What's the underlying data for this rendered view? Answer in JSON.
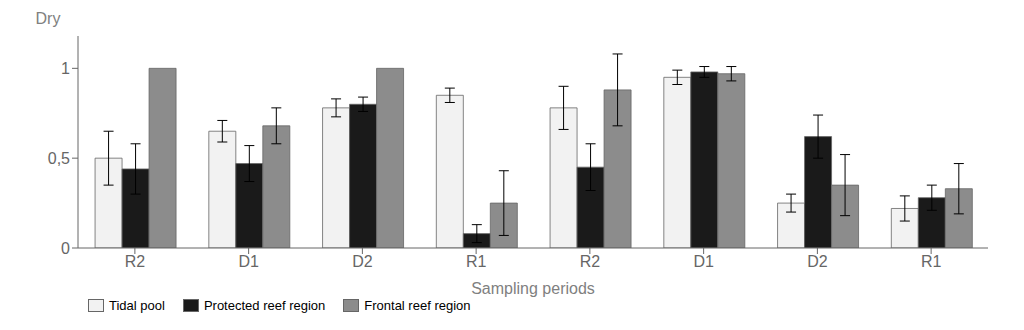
{
  "chart_data": {
    "type": "bar",
    "xlabel": "Sampling periods",
    "ylabel": "Dry",
    "categories": [
      "R2",
      "D1",
      "D2",
      "R1",
      "R2",
      "D1",
      "D2",
      "R1"
    ],
    "series": [
      {
        "name": "Tidal pool",
        "color": "#f2f2f2",
        "values": [
          0.5,
          0.65,
          0.78,
          0.85,
          0.78,
          0.95,
          0.25,
          0.22
        ],
        "errors": [
          0.15,
          0.06,
          0.05,
          0.04,
          0.12,
          0.04,
          0.05,
          0.07
        ]
      },
      {
        "name": "Protected reef region",
        "color": "#1a1a1a",
        "values": [
          0.44,
          0.47,
          0.8,
          0.08,
          0.45,
          0.98,
          0.62,
          0.28
        ],
        "errors": [
          0.14,
          0.1,
          0.04,
          0.05,
          0.13,
          0.03,
          0.12,
          0.07
        ]
      },
      {
        "name": "Frontal reef region",
        "color": "#8c8c8c",
        "values": [
          1.0,
          0.68,
          1.0,
          0.25,
          0.88,
          0.97,
          0.35,
          0.33
        ],
        "errors": [
          0.0,
          0.1,
          0.0,
          0.18,
          0.2,
          0.04,
          0.17,
          0.14
        ]
      }
    ],
    "ylim": [
      0,
      1.18
    ],
    "yticks": [
      0,
      {
        "value": 0.5,
        "label": "0,5"
      },
      1
    ],
    "legend": "bottom",
    "grid": false
  }
}
